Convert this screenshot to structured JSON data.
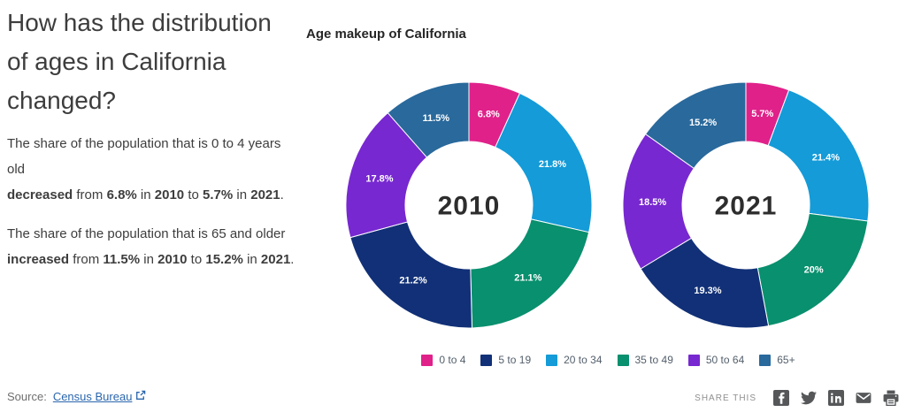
{
  "page": {
    "heading": "How has the distribution of ages in California changed?",
    "paragraphs": [
      {
        "lines": [
          [
            {
              "text": "The share of the population that is 0 to 4 years old"
            }
          ],
          [
            {
              "text": "decreased",
              "bold": true
            },
            {
              "text": " from "
            },
            {
              "text": "6.8%",
              "bold": true
            },
            {
              "text": " in "
            },
            {
              "text": "2010",
              "bold": true
            },
            {
              "text": " to "
            },
            {
              "text": "5.7%",
              "bold": true
            },
            {
              "text": " in "
            },
            {
              "text": "2021",
              "bold": true
            },
            {
              "text": "."
            }
          ]
        ]
      },
      {
        "lines": [
          [
            {
              "text": "The share of the population that is 65 and older"
            }
          ],
          [
            {
              "text": "increased",
              "bold": true
            },
            {
              "text": " from "
            },
            {
              "text": "11.5%",
              "bold": true
            },
            {
              "text": " in "
            },
            {
              "text": "2010",
              "bold": true
            },
            {
              "text": " to "
            },
            {
              "text": "15.2%",
              "bold": true
            },
            {
              "text": " in "
            },
            {
              "text": "2021",
              "bold": true
            },
            {
              "text": "."
            }
          ]
        ]
      }
    ]
  },
  "chart_data": {
    "type": "pie",
    "subtype": "donut",
    "title": "Age makeup of California",
    "categories": [
      "0 to 4",
      "5 to 19",
      "20 to 34",
      "35 to 49",
      "50 to 64",
      "65+"
    ],
    "colors": {
      "0 to 4": "#e0218a",
      "5 to 19": "#113077",
      "20 to 34": "#149bd8",
      "35 to 49": "#09906e",
      "50 to 64": "#7728d0",
      "65+": "#29699c"
    },
    "slice_order": [
      "0 to 4",
      "20 to 34",
      "35 to 49",
      "5 to 19",
      "50 to 64",
      "65+"
    ],
    "series": [
      {
        "name": "2010",
        "values": {
          "0 to 4": 6.8,
          "5 to 19": 21.2,
          "20 to 34": 21.8,
          "35 to 49": 21.1,
          "50 to 64": 17.8,
          "65+": 11.5
        }
      },
      {
        "name": "2021",
        "values": {
          "0 to 4": 5.7,
          "5 to 19": 19.3,
          "20 to 34": 21.4,
          "35 to 49": 20,
          "50 to 64": 18.5,
          "65+": 15.2
        }
      }
    ],
    "value_label_format": "percent",
    "value_label_color": "#ffffff",
    "legend_position": "bottom",
    "start_angle": "top",
    "direction": "clockwise"
  },
  "footer": {
    "source_label": "Source:",
    "source_link_text": "Census Bureau",
    "external_link_icon": "external-link-icon",
    "share_label": "SHARE THIS",
    "share_icons": [
      "facebook-icon",
      "twitter-icon",
      "linkedin-icon",
      "email-icon",
      "print-icon"
    ],
    "icon_color": "#555759"
  }
}
